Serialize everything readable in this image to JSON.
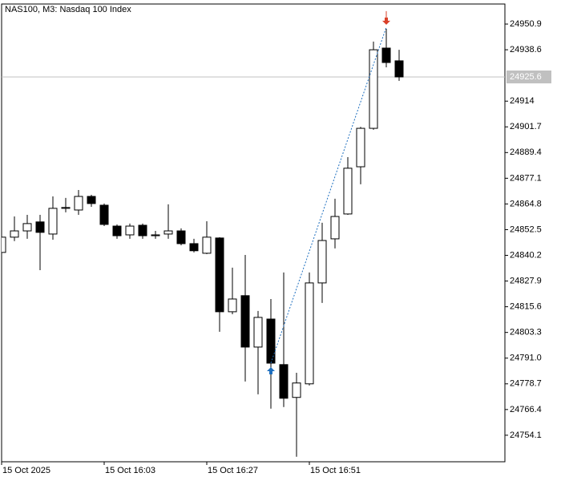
{
  "chart_data": {
    "type": "candlestick",
    "title": "NAS100, M3:  Nasdaq 100 Index",
    "categories": [
      "15 Oct 2025",
      null,
      null,
      null,
      null,
      null,
      null,
      null,
      "15 Oct 16:03",
      null,
      null,
      null,
      null,
      null,
      null,
      null,
      "15 Oct 16:27",
      null,
      null,
      null,
      null,
      null,
      null,
      null,
      "15 Oct 16:51",
      null,
      null,
      null,
      null,
      null,
      null,
      null
    ],
    "open": [
      24841.6,
      24848.9,
      24851.9,
      24856.2,
      24850.4,
      24862.7,
      24861.9,
      24868.4,
      24864.2,
      24854.2,
      24850.0,
      24854.6,
      24849.6,
      24850.4,
      24851.9,
      24845.8,
      24841.2,
      24848.5,
      24813.2,
      24820.9,
      24796.3,
      24809.7,
      24787.9,
      24772.2,
      24778.7,
      24827.0,
      24848.1,
      24860.0,
      24882.6,
      24901.0,
      24939.4,
      24933.3
    ],
    "high": [
      24849.6,
      24858.8,
      24859.6,
      24859.6,
      24868.4,
      24867.7,
      24871.5,
      24869.2,
      24865.0,
      24855.0,
      24855.4,
      24855.4,
      24851.9,
      24864.6,
      24853.1,
      24848.1,
      24856.5,
      24848.9,
      24834.3,
      24840.4,
      24813.6,
      24819.3,
      24832.0,
      24784.0,
      24832.0,
      24855.8,
      24867.3,
      24887.2,
      24901.7,
      24942.5,
      24948.6,
      24938.6
    ],
    "low": [
      24840.8,
      24847.0,
      24848.1,
      24833.1,
      24847.7,
      24860.8,
      24859.6,
      24863.4,
      24854.2,
      24848.1,
      24848.1,
      24848.1,
      24848.1,
      24848.1,
      24845.0,
      24841.6,
      24840.8,
      24803.6,
      24812.0,
      24779.8,
      24773.7,
      24766.8,
      24767.6,
      24743.8,
      24777.9,
      24817.4,
      24843.5,
      24859.6,
      24874.2,
      24900.3,
      24930.2,
      24923.7
    ],
    "close": [
      24848.9,
      24851.9,
      24855.4,
      24851.2,
      24862.7,
      24863.1,
      24868.4,
      24865.0,
      24855.0,
      24849.6,
      24854.2,
      24849.6,
      24850.0,
      24851.9,
      24845.8,
      24842.4,
      24848.9,
      24813.2,
      24819.3,
      24796.3,
      24810.5,
      24788.6,
      24771.8,
      24779.1,
      24827.0,
      24847.3,
      24858.8,
      24881.9,
      24901.0,
      24938.6,
      24932.5,
      24925.6
    ],
    "up_color": "#ffffff",
    "down_color": "#000000",
    "ylim": [
      24741.4,
      24960.5
    ],
    "yticks": [
      24950.9,
      24938.6,
      24914,
      24901.7,
      24889.4,
      24877.1,
      24864.8,
      24852.5,
      24840.2,
      24827.9,
      24815.6,
      24803.3,
      {
        "value": 24791,
        "label": "24791.0"
      },
      24778.7,
      24766.4,
      24754.1
    ],
    "current_price": 24925.6,
    "trade": {
      "entry": {
        "index": 21,
        "price": 24788.6
      },
      "exit": {
        "index": 30,
        "price": 24949.4
      }
    }
  }
}
